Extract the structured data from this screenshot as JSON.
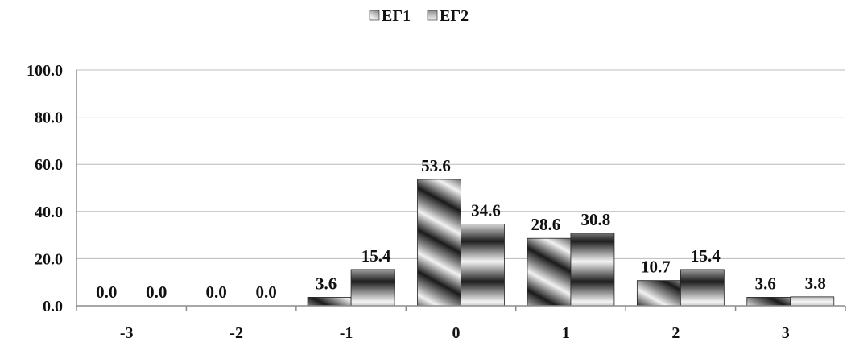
{
  "chart_data": {
    "type": "bar",
    "categories": [
      "-3",
      "-2",
      "-1",
      "0",
      "1",
      "2",
      "3"
    ],
    "series": [
      {
        "name": "ΕΓ1",
        "values": [
          0.0,
          0.0,
          3.6,
          53.6,
          28.6,
          10.7,
          3.6
        ],
        "labels": [
          "0.0",
          "0.0",
          "3.6",
          "53.6",
          "28.6",
          "10.7",
          "3.6"
        ]
      },
      {
        "name": "ΕΓ2",
        "values": [
          0.0,
          0.0,
          15.4,
          34.6,
          30.8,
          15.4,
          3.8
        ],
        "labels": [
          "0.0",
          "0.0",
          "15.4",
          "34.6",
          "30.8",
          "15.4",
          "3.8"
        ]
      }
    ],
    "ylim": [
      0,
      100
    ],
    "yticks": [
      "0.0",
      "20.0",
      "40.0",
      "60.0",
      "80.0",
      "100.0"
    ],
    "grid": true,
    "legend_position": "top-center"
  }
}
